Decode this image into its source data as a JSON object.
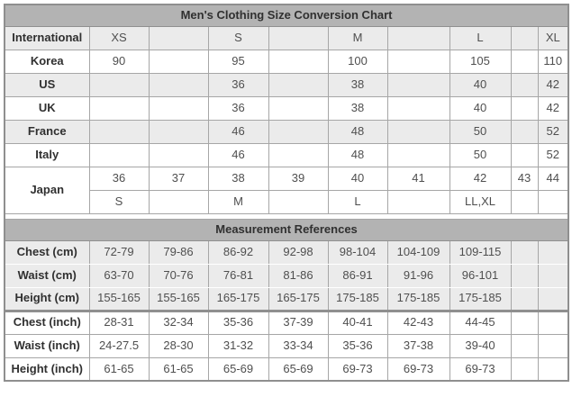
{
  "colors": {
    "header_bar_bg": "#b3b3b3",
    "shaded_row_bg": "#ebebeb",
    "grid_border": "#a6a6a6",
    "frame_border": "#8f8f8f",
    "label_text": "#303030",
    "value_text": "#4f4f4f",
    "page_bg": "#ffffff"
  },
  "chart_data": [
    {
      "type": "table",
      "title": "Men's Clothing Size Conversion Chart",
      "rows": [
        {
          "label": "International",
          "cells": [
            "XS",
            "",
            "S",
            "",
            "M",
            "",
            "L",
            "",
            "XL"
          ]
        },
        {
          "label": "Korea",
          "cells": [
            "90",
            "",
            "95",
            "",
            "100",
            "",
            "105",
            "",
            "110"
          ]
        },
        {
          "label": "US",
          "cells": [
            "",
            "",
            "36",
            "",
            "38",
            "",
            "40",
            "",
            "42"
          ]
        },
        {
          "label": "UK",
          "cells": [
            "",
            "",
            "36",
            "",
            "38",
            "",
            "40",
            "",
            "42"
          ]
        },
        {
          "label": "France",
          "cells": [
            "",
            "",
            "46",
            "",
            "48",
            "",
            "50",
            "",
            "52"
          ]
        },
        {
          "label": "Italy",
          "cells": [
            "",
            "",
            "46",
            "",
            "48",
            "",
            "50",
            "",
            "52"
          ]
        },
        {
          "label": "Japan",
          "cells": [
            "36",
            "37",
            "38",
            "39",
            "40",
            "41",
            "42",
            "43",
            "44"
          ],
          "cells2": [
            "S",
            "",
            "M",
            "",
            "L",
            "",
            "LL,XL",
            "",
            ""
          ]
        }
      ]
    },
    {
      "type": "table",
      "title": "Measurement References",
      "rows": [
        {
          "label": "Chest (cm)",
          "group": "cm",
          "cells": [
            "72-79",
            "79-86",
            "86-92",
            "92-98",
            "98-104",
            "104-109",
            "109-115",
            "",
            ""
          ]
        },
        {
          "label": "Waist (cm)",
          "group": "cm",
          "cells": [
            "63-70",
            "70-76",
            "76-81",
            "81-86",
            "86-91",
            "91-96",
            "96-101",
            "",
            ""
          ]
        },
        {
          "label": "Height (cm)",
          "group": "cm",
          "cells": [
            "155-165",
            "155-165",
            "165-175",
            "165-175",
            "175-185",
            "175-185",
            "175-185",
            "",
            ""
          ]
        },
        {
          "label": "Chest (inch)",
          "group": "inch",
          "cells": [
            "28-31",
            "32-34",
            "35-36",
            "37-39",
            "40-41",
            "42-43",
            "44-45",
            "",
            ""
          ]
        },
        {
          "label": "Waist (inch)",
          "group": "inch",
          "cells": [
            "24-27.5",
            "28-30",
            "31-32",
            "33-34",
            "35-36",
            "37-38",
            "39-40",
            "",
            ""
          ]
        },
        {
          "label": "Height (inch)",
          "group": "inch",
          "cells": [
            "61-65",
            "61-65",
            "65-69",
            "65-69",
            "69-73",
            "69-73",
            "69-73",
            "",
            ""
          ]
        }
      ]
    }
  ]
}
